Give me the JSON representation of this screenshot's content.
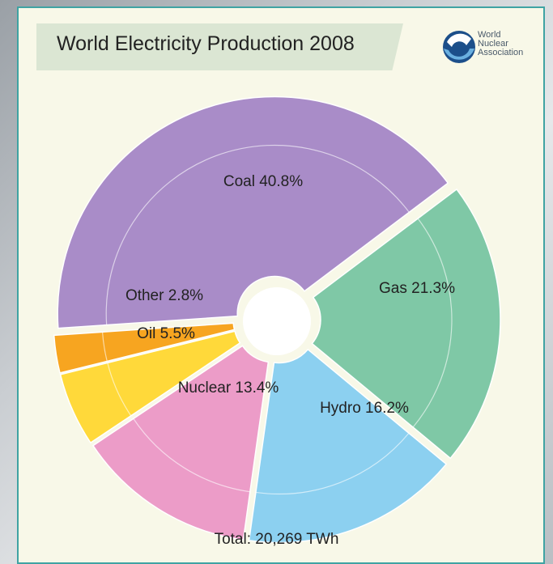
{
  "chart_data": {
    "type": "pie",
    "title": "World Electricity Production 2008",
    "slices": [
      {
        "label": "Coal",
        "value": 40.8,
        "display": "Coal 40.8%",
        "color": "#a98cc8"
      },
      {
        "label": "Gas",
        "value": 21.3,
        "display": "Gas 21.3%",
        "color": "#7fc8a6"
      },
      {
        "label": "Hydro",
        "value": 16.2,
        "display": "Hydro 16.2%",
        "color": "#8cd0f0"
      },
      {
        "label": "Nuclear",
        "value": 13.4,
        "display": "Nuclear 13.4%",
        "color": "#ec9cc8"
      },
      {
        "label": "Oil",
        "value": 5.5,
        "display": "Oil 5.5%",
        "color": "#ffd93a"
      },
      {
        "label": "Other",
        "value": 2.8,
        "display": "Other 2.8%",
        "color": "#f7a520"
      }
    ],
    "total": "Total: 20,269 TWh"
  },
  "logo": {
    "name": "wna-logo-icon",
    "lines": [
      "World",
      "Nuclear",
      "Association"
    ]
  }
}
